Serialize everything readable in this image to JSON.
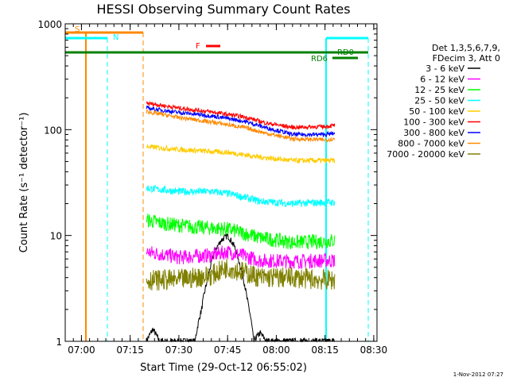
{
  "chart_data": {
    "type": "line",
    "title": "HESSI Observing Summary Count Rates",
    "xlabel": "Start Time (29-Oct-12 06:55:02)",
    "ylabel": "Count Rate (s⁻¹ detector⁻¹)",
    "ylog": true,
    "ylim": [
      1,
      1000
    ],
    "xlim_minutes": [
      0,
      96
    ],
    "xticks": [
      {
        "label": "07:00",
        "m": 5
      },
      {
        "label": "07:15",
        "m": 20
      },
      {
        "label": "07:30",
        "m": 35
      },
      {
        "label": "07:45",
        "m": 50
      },
      {
        "label": "08:00",
        "m": 65
      },
      {
        "label": "08:15",
        "m": 80
      },
      {
        "label": "08:30",
        "m": 95
      }
    ],
    "yticks": [
      {
        "label": "1",
        "v": 1
      },
      {
        "label": "10",
        "v": 10
      },
      {
        "label": "100",
        "v": 100
      },
      {
        "label": "1000",
        "v": 1000
      }
    ],
    "legend": {
      "header": [
        "Det 1,3,5,6,7,9,",
        "FDecim 3, Att 0"
      ],
      "placement": "right"
    },
    "data_start_m": 25,
    "data_end_m": 83,
    "series": [
      {
        "name": "3 - 6 keV",
        "color": "#000000",
        "noise": 0.03,
        "points": [
          [
            25,
            1
          ],
          [
            27,
            1.3
          ],
          [
            29,
            1
          ],
          [
            40,
            1
          ],
          [
            42,
            2
          ],
          [
            44,
            4
          ],
          [
            46,
            7
          ],
          [
            48,
            9
          ],
          [
            50,
            10
          ],
          [
            52,
            8
          ],
          [
            54,
            5
          ],
          [
            56,
            2.5
          ],
          [
            58,
            1
          ],
          [
            60,
            1.2
          ],
          [
            62,
            1
          ],
          [
            83,
            1
          ]
        ]
      },
      {
        "name": "6 - 12 keV",
        "color": "#ff00ff",
        "noise": 0.07,
        "points": [
          [
            25,
            7
          ],
          [
            35,
            6.2
          ],
          [
            45,
            6.5
          ],
          [
            50,
            7
          ],
          [
            60,
            5.8
          ],
          [
            70,
            5.7
          ],
          [
            80,
            5.8
          ],
          [
            83,
            5.8
          ]
        ]
      },
      {
        "name": "12 - 25 keV",
        "color": "#00ff00",
        "noise": 0.07,
        "points": [
          [
            25,
            14
          ],
          [
            30,
            13
          ],
          [
            40,
            12
          ],
          [
            50,
            11.5
          ],
          [
            60,
            9.5
          ],
          [
            70,
            8.6
          ],
          [
            80,
            8.8
          ],
          [
            83,
            9
          ]
        ]
      },
      {
        "name": "25 - 50 keV",
        "color": "#00ffff",
        "noise": 0.035,
        "points": [
          [
            25,
            28
          ],
          [
            35,
            26
          ],
          [
            45,
            26
          ],
          [
            50,
            25
          ],
          [
            60,
            21
          ],
          [
            70,
            20
          ],
          [
            80,
            20.5
          ],
          [
            83,
            20.5
          ]
        ]
      },
      {
        "name": "50 - 100 keV",
        "color": "#ffcc00",
        "noise": 0.025,
        "points": [
          [
            25,
            69
          ],
          [
            35,
            65
          ],
          [
            45,
            62
          ],
          [
            50,
            61
          ],
          [
            60,
            55
          ],
          [
            70,
            51
          ],
          [
            80,
            51
          ],
          [
            83,
            51
          ]
        ]
      },
      {
        "name": "100 - 300 keV",
        "color": "#ff0000",
        "noise": 0.02,
        "points": [
          [
            25,
            178
          ],
          [
            35,
            160
          ],
          [
            45,
            147
          ],
          [
            55,
            132
          ],
          [
            62,
            115
          ],
          [
            70,
            105
          ],
          [
            80,
            107
          ],
          [
            83,
            110
          ]
        ]
      },
      {
        "name": "300 - 800 keV",
        "color": "#0000ff",
        "noise": 0.02,
        "points": [
          [
            25,
            160
          ],
          [
            35,
            145
          ],
          [
            45,
            135
          ],
          [
            55,
            120
          ],
          [
            62,
            104
          ],
          [
            70,
            90
          ],
          [
            80,
            90
          ],
          [
            83,
            92
          ]
        ]
      },
      {
        "name": "800 - 7000 keV",
        "color": "#ff8800",
        "noise": 0.02,
        "points": [
          [
            25,
            148
          ],
          [
            35,
            130
          ],
          [
            45,
            118
          ],
          [
            55,
            105
          ],
          [
            62,
            92
          ],
          [
            70,
            82
          ],
          [
            80,
            80
          ],
          [
            83,
            82
          ]
        ]
      },
      {
        "name": "7000 - 20000 keV",
        "color": "#808000",
        "noise": 0.1,
        "points": [
          [
            25,
            3.8
          ],
          [
            35,
            3.8
          ],
          [
            45,
            4.2
          ],
          [
            50,
            5
          ],
          [
            55,
            4.5
          ],
          [
            60,
            4
          ],
          [
            70,
            4
          ],
          [
            80,
            3.8
          ],
          [
            83,
            3.8
          ]
        ]
      }
    ],
    "annotations": [
      {
        "text": "S",
        "color": "#ff8800"
      },
      {
        "text": "N",
        "color": "#00ffff"
      },
      {
        "text": "F",
        "color": "#ff0000"
      },
      {
        "text": "RD0",
        "color": "#008000"
      },
      {
        "text": "RD6",
        "color": "#008000"
      }
    ],
    "footer": "1-Nov-2012 07:27"
  }
}
